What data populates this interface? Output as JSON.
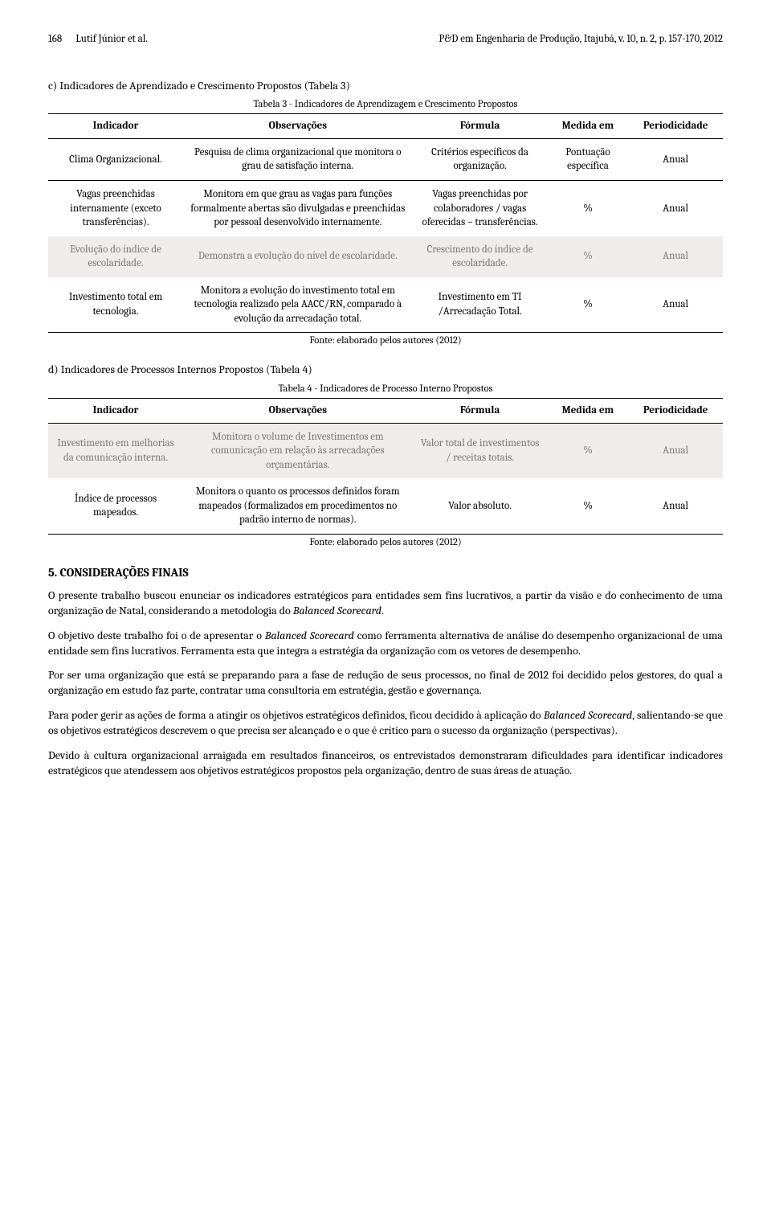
{
  "header": {
    "page_number": "168",
    "authors": "Lutif Júnior et al.",
    "journal": "P&D em Engenharia de Produção, Itajubá, v. 10, n. 2, p. 157-170, 2012"
  },
  "section_c": {
    "label": "c)  Indicadores de Aprendizado e Crescimento Propostos (Tabela 3)"
  },
  "table3": {
    "caption": "Tabela 3 - Indicadores de Aprendizagem e Crescimento Propostos",
    "columns": [
      "Indicador",
      "Observações",
      "Fórmula",
      "Medida em",
      "Periodicidade"
    ],
    "rows": [
      {
        "ind": "Clima Organizacional.",
        "obs": "Pesquisa de clima organizacional que monitora o grau de satisfação interna.",
        "for": "Critérios específicos da organização.",
        "med": "Pontuação específica",
        "per": "Anual",
        "shade": false
      },
      {
        "ind": "Vagas preenchidas internamente (exceto transferências).",
        "obs": "Monitora em que grau as vagas para funções formalmente abertas são divulgadas e preenchidas por pessoal desenvolvido internamente.",
        "for": "Vagas preenchidas por colaboradores / vagas oferecidas – transferências.",
        "med": "%",
        "per": "Anual",
        "shade": false
      },
      {
        "ind": "Evolução do índice de escolaridade.",
        "obs": "Demonstra a evolução do nível de escolaridade.",
        "for": "Crescimento do índice de escolaridade.",
        "med": "%",
        "per": "Anual",
        "shade": true
      },
      {
        "ind": "Investimento total em tecnologia.",
        "obs": "Monitora a evolução do investimento total em tecnologia realizado pela AACC/RN, comparado à evolução da arrecadação total.",
        "for": "Investimento em TI /Arrecadação Total.",
        "med": "%",
        "per": "Anual",
        "shade": false
      }
    ],
    "source": "Fonte: elaborado pelos autores (2012)"
  },
  "section_d": {
    "label": "d) Indicadores de Processos Internos Propostos (Tabela 4)"
  },
  "table4": {
    "caption": "Tabela 4 - Indicadores de Processo Interno Propostos",
    "columns": [
      "Indicador",
      "Observações",
      "Fórmula",
      "Medida em",
      "Periodicidade"
    ],
    "rows": [
      {
        "ind": "Investimento em melhorias da comunicação interna.",
        "obs": "Monitora o volume de Investimentos em comunicação em relação às arrecadações orçamentárias.",
        "for": "Valor total de investimentos / receitas totais.",
        "med": "%",
        "per": "Anual",
        "shade": true
      },
      {
        "ind": "Índice de processos mapeados.",
        "obs": "Monitora o quanto os processos definidos foram mapeados (formalizados em procedimentos no padrão interno de normas).",
        "for": "Valor absoluto.",
        "med": "%",
        "per": "Anual",
        "shade": false
      }
    ],
    "source": "Fonte: elaborado pelos autores (2012)"
  },
  "final": {
    "heading": "5. CONSIDERAÇÕES FINAIS",
    "p1_a": "O presente trabalho buscou enunciar os indicadores estratégicos para entidades sem fins lucrativos, a partir da visão e do conhecimento de uma organização de Natal, considerando a metodologia do ",
    "p1_b": "Balanced Scorecard",
    "p1_c": ".",
    "p2_a": "O objetivo deste trabalho foi o de apresentar o ",
    "p2_b": "Balanced Scorecard",
    "p2_c": " como ferramenta alternativa de análise do desempenho organizacional de uma entidade sem fins lucrativos. Ferramenta esta que integra a estratégia da organização com os vetores de desempenho.",
    "p3": "Por ser uma organização que está se preparando para a fase de redução de seus processos, no final de 2012 foi decidido pelos gestores, do qual a organização em estudo faz parte, contratar uma consultoria em estratégia, gestão e governança.",
    "p4_a": "Para poder gerir as ações de forma a atingir os objetivos estratégicos definidos, ficou decidido à aplicação do ",
    "p4_b": "Balanced Scorecard",
    "p4_c": ", salientando-se que os objetivos estratégicos descrevem o que precisa ser alcançado e o que é crítico para o sucesso da organização (perspectivas).",
    "p5": "Devido à cultura organizacional arraigada em resultados financeiros, os entrevistados demonstraram dificuldades para identificar indicadores estratégicos que atendessem aos objetivos estratégicos propostos pela organização, dentro de suas áreas de atuação."
  }
}
